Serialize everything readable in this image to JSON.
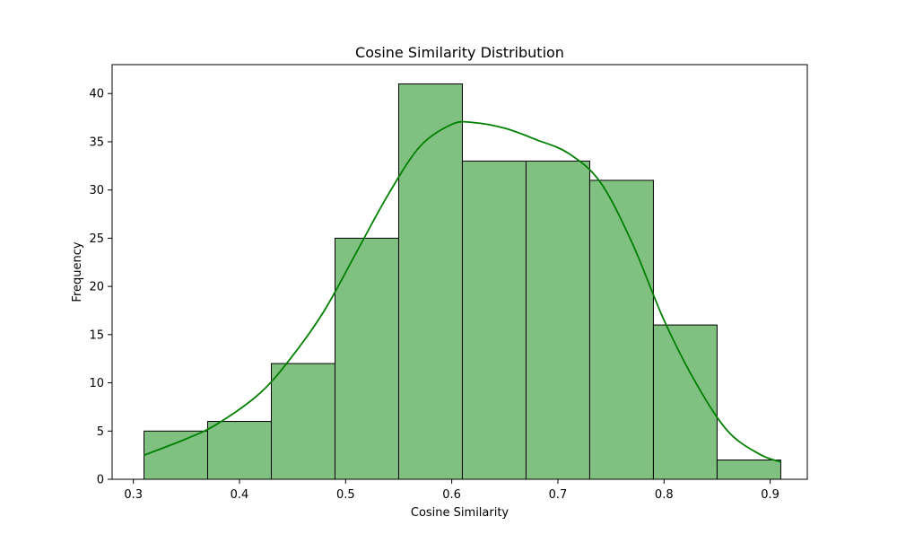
{
  "chart_data": {
    "type": "bar",
    "subtype": "histogram",
    "title": "Cosine Similarity Distribution",
    "xlabel": "Cosine Similarity",
    "ylabel": "Frequency",
    "xlim": [
      0.28,
      0.935
    ],
    "ylim": [
      0,
      43
    ],
    "xticks": [
      "0.3",
      "0.4",
      "0.5",
      "0.6",
      "0.7",
      "0.8",
      "0.9"
    ],
    "yticks": [
      "0",
      "5",
      "10",
      "15",
      "20",
      "25",
      "30",
      "35",
      "40"
    ],
    "grid": false,
    "bins": [
      {
        "start": 0.31,
        "end": 0.37,
        "count": 5
      },
      {
        "start": 0.37,
        "end": 0.43,
        "count": 6
      },
      {
        "start": 0.43,
        "end": 0.49,
        "count": 12
      },
      {
        "start": 0.49,
        "end": 0.55,
        "count": 25
      },
      {
        "start": 0.55,
        "end": 0.61,
        "count": 41
      },
      {
        "start": 0.61,
        "end": 0.67,
        "count": 33
      },
      {
        "start": 0.67,
        "end": 0.73,
        "count": 33
      },
      {
        "start": 0.73,
        "end": 0.79,
        "count": 31
      },
      {
        "start": 0.79,
        "end": 0.85,
        "count": 16
      },
      {
        "start": 0.85,
        "end": 0.91,
        "count": 2
      }
    ],
    "kde": {
      "x": [
        0.31,
        0.35,
        0.38,
        0.42,
        0.45,
        0.48,
        0.51,
        0.54,
        0.57,
        0.6,
        0.62,
        0.65,
        0.68,
        0.71,
        0.74,
        0.77,
        0.8,
        0.83,
        0.86,
        0.89,
        0.91
      ],
      "y": [
        2.5,
        4.2,
        5.8,
        9.0,
        12.8,
        17.5,
        23.5,
        29.5,
        34.5,
        36.8,
        37.0,
        36.4,
        35.2,
        33.8,
        30.8,
        24.5,
        16.5,
        10.0,
        5.0,
        2.6,
        1.8
      ]
    },
    "colors": {
      "bar_fill": "#80c080",
      "bar_edge": "#000000",
      "kde_line": "#008000"
    }
  }
}
